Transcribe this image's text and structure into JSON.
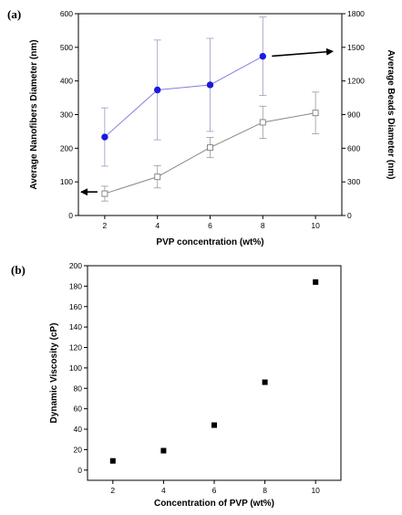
{
  "chart_data": [
    {
      "panel_label": "(a)",
      "type": "line",
      "xlabel": "PVP concentration (wt%)",
      "ylabel_left": "Average Nanofibers Diameter (nm)",
      "ylabel_right": "Average Beads Diameter (nm)",
      "xlim": [
        1,
        11
      ],
      "ylim_left": [
        0,
        600
      ],
      "ylim_right": [
        0,
        1800
      ],
      "xticks": [
        2,
        4,
        6,
        8,
        10
      ],
      "yticks_left": [
        0,
        100,
        200,
        300,
        400,
        500,
        600
      ],
      "yticks_right": [
        0,
        300,
        600,
        900,
        1200,
        1500,
        1800
      ],
      "series": [
        {
          "axis": "left",
          "marker": "open-square",
          "color": "#888888",
          "x": [
            2,
            4,
            6,
            8,
            10
          ],
          "y": [
            65,
            115,
            202,
            277,
            305
          ],
          "err": [
            22,
            33,
            30,
            48,
            62
          ]
        },
        {
          "axis": "right",
          "marker": "filled-circle",
          "color": "#1a1adb",
          "line_color": "#8080e0",
          "x": [
            2,
            4,
            6,
            8
          ],
          "y": [
            700,
            1120,
            1165,
            1420
          ],
          "err": [
            260,
            445,
            415,
            350
          ]
        }
      ],
      "annotations": [
        {
          "type": "arrow",
          "direction": "left",
          "points_to": "left-axis",
          "at_x": 2,
          "at_y": 70
        },
        {
          "type": "arrow",
          "direction": "right",
          "points_to": "right-axis",
          "at_x": 8,
          "at_y": 488
        }
      ]
    },
    {
      "panel_label": "(b)",
      "type": "scatter",
      "xlabel": "Concentration of PVP (wt%)",
      "ylabel": "Dynamic Viscosity (cP)",
      "xlim": [
        1,
        11
      ],
      "ylim": [
        -10,
        200
      ],
      "xticks": [
        2,
        4,
        6,
        8,
        10
      ],
      "yticks": [
        0,
        20,
        40,
        60,
        80,
        100,
        120,
        140,
        160,
        180,
        200
      ],
      "marker": "filled-square",
      "color": "#000000",
      "x": [
        2,
        4,
        6,
        8,
        10
      ],
      "y": [
        9,
        19,
        44,
        86,
        184
      ]
    }
  ]
}
